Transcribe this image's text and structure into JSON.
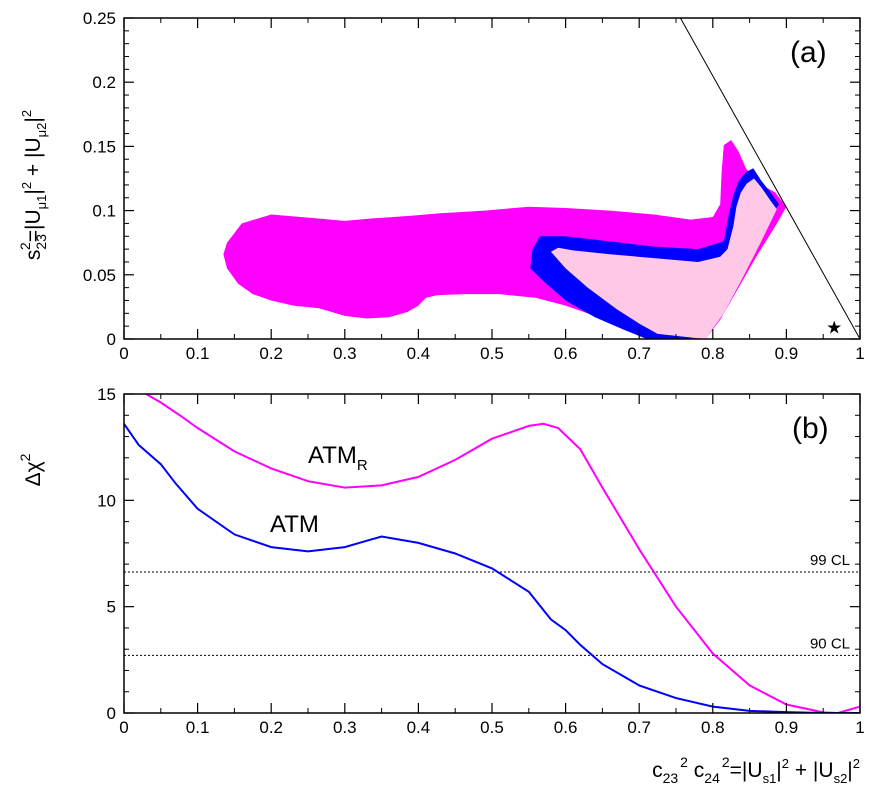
{
  "colors": {
    "axis": "#000000",
    "outer_region": "#ff00ff",
    "middle_region": "#0000ff",
    "inner_region": "#ffc8e6",
    "atm_r_curve": "#ff00ff",
    "atm_curve": "#0000ff",
    "cl_lines": "#000000"
  },
  "chart_data": [
    {
      "type": "area",
      "panel_label": "(a)",
      "ylabel": "s₂₃²=|U_μ1|² + |U_μ2|²",
      "ylabel_parts": {
        "main": "s",
        "sub1": "23",
        "sup1": "2",
        "mid": "=|U",
        "sub2": "μ1",
        "mid2": "|",
        "sup2": "2",
        "plus": " + |U",
        "sub3": "μ2",
        "mid3": "|",
        "sup3": "2"
      },
      "xlim": [
        0,
        1
      ],
      "ylim": [
        0,
        0.25
      ],
      "xticks": [
        "0",
        "0.1",
        "0.2",
        "0.3",
        "0.4",
        "0.5",
        "0.6",
        "0.7",
        "0.8",
        "0.9",
        "1"
      ],
      "yticks": [
        "0",
        "0.05",
        "0.1",
        "0.15",
        "0.2",
        "0.25"
      ],
      "boundary_line": {
        "x": [
          0.756,
          1.0
        ],
        "y": [
          0.25,
          0.0
        ]
      },
      "best_fit_marker": {
        "x": 0.965,
        "y": 0.009,
        "symbol": "★"
      },
      "regions": [
        {
          "name": "",
          "color_key": "outer_region",
          "x": [
            0.14,
            0.135,
            0.14,
            0.155,
            0.175,
            0.2,
            0.23,
            0.265,
            0.3,
            0.33,
            0.36,
            0.385,
            0.4,
            0.41,
            0.425,
            0.46,
            0.51,
            0.56,
            0.6,
            0.64,
            0.68,
            0.72,
            0.76,
            0.79,
            0.81,
            0.835,
            0.86,
            0.885,
            0.9,
            0.885,
            0.86,
            0.845,
            0.835,
            0.825,
            0.815,
            0.812,
            0.81,
            0.8,
            0.77,
            0.72,
            0.66,
            0.6,
            0.55,
            0.49,
            0.43,
            0.39,
            0.34,
            0.3,
            0.26,
            0.2,
            0.16
          ],
          "y": [
            0.075,
            0.066,
            0.055,
            0.043,
            0.035,
            0.03,
            0.026,
            0.024,
            0.018,
            0.016,
            0.017,
            0.021,
            0.026,
            0.032,
            0.034,
            0.035,
            0.035,
            0.032,
            0.026,
            0.018,
            0.01,
            0.003,
            0.0,
            0.0,
            0.015,
            0.04,
            0.065,
            0.088,
            0.103,
            0.114,
            0.122,
            0.133,
            0.146,
            0.155,
            0.151,
            0.13,
            0.105,
            0.095,
            0.093,
            0.097,
            0.1,
            0.102,
            0.103,
            0.1,
            0.098,
            0.096,
            0.094,
            0.092,
            0.094,
            0.097,
            0.09
          ]
        },
        {
          "name": "",
          "color_key": "middle_region",
          "x": [
            0.555,
            0.552,
            0.57,
            0.6,
            0.64,
            0.68,
            0.71,
            0.77,
            0.79,
            0.815,
            0.84,
            0.865,
            0.89,
            0.88,
            0.865,
            0.855,
            0.845,
            0.835,
            0.828,
            0.822,
            0.815,
            0.78,
            0.72,
            0.66,
            0.6,
            0.565
          ],
          "y": [
            0.07,
            0.055,
            0.045,
            0.03,
            0.017,
            0.007,
            0.0,
            0.0,
            0.01,
            0.035,
            0.06,
            0.085,
            0.105,
            0.113,
            0.124,
            0.133,
            0.13,
            0.123,
            0.112,
            0.098,
            0.076,
            0.07,
            0.072,
            0.076,
            0.08,
            0.08
          ]
        },
        {
          "name": "",
          "color_key": "inner_region",
          "x": [
            0.58,
            0.6,
            0.63,
            0.67,
            0.7,
            0.725,
            0.79,
            0.815,
            0.84,
            0.865,
            0.887,
            0.878,
            0.866,
            0.856,
            0.846,
            0.838,
            0.832,
            0.828,
            0.82,
            0.81,
            0.78,
            0.72,
            0.66,
            0.61,
            0.59
          ],
          "y": [
            0.068,
            0.055,
            0.04,
            0.023,
            0.012,
            0.004,
            0.0,
            0.02,
            0.047,
            0.075,
            0.101,
            0.108,
            0.118,
            0.125,
            0.121,
            0.114,
            0.103,
            0.088,
            0.07,
            0.064,
            0.06,
            0.063,
            0.066,
            0.069,
            0.071
          ]
        }
      ]
    },
    {
      "type": "line",
      "panel_label": "(b)",
      "ylabel": "Δχ²",
      "ylabel_parts": {
        "main": "Δχ",
        "sup": "2"
      },
      "xlabel": "c₂₃² c₂₄²=|U_s1|² + |U_s2|²",
      "xlabel_parts": {
        "c1": "c",
        "sub1": "23",
        "sup1": "2",
        "c2": " c",
        "sub2": "24",
        "sup2": "2",
        "mid": "=|U",
        "sub3": "s1",
        "mid2": "|",
        "sup3": "2",
        "plus": " + |U",
        "sub4": "s2",
        "mid3": "|",
        "sup4": "2"
      },
      "xlim": [
        0,
        1
      ],
      "ylim": [
        0,
        15
      ],
      "xticks": [
        "0",
        "0.1",
        "0.2",
        "0.3",
        "0.4",
        "0.5",
        "0.6",
        "0.7",
        "0.8",
        "0.9",
        "1"
      ],
      "yticks": [
        "0",
        "5",
        "10",
        "15"
      ],
      "cl_lines": [
        {
          "label": "99 CL",
          "y": 6.63
        },
        {
          "label": "90 CL",
          "y": 2.71
        }
      ],
      "series": [
        {
          "name": "ATM",
          "label_main": "ATM",
          "label_sub": "R",
          "color_key": "atm_r_curve",
          "x": [
            0.03,
            0.05,
            0.08,
            0.1,
            0.15,
            0.2,
            0.25,
            0.3,
            0.35,
            0.4,
            0.45,
            0.5,
            0.55,
            0.57,
            0.59,
            0.62,
            0.65,
            0.7,
            0.75,
            0.8,
            0.85,
            0.9,
            0.95,
            0.97,
            1.0
          ],
          "y": [
            15.0,
            14.6,
            13.9,
            13.4,
            12.3,
            11.5,
            10.9,
            10.6,
            10.7,
            11.1,
            11.9,
            12.9,
            13.5,
            13.6,
            13.4,
            12.4,
            10.6,
            7.7,
            5.0,
            2.8,
            1.3,
            0.4,
            0.03,
            0.0,
            0.3
          ]
        },
        {
          "name": "ATM",
          "label_main": "ATM",
          "label_sub": "",
          "color_key": "atm_curve",
          "x": [
            0.0,
            0.02,
            0.05,
            0.07,
            0.1,
            0.15,
            0.2,
            0.25,
            0.3,
            0.33,
            0.35,
            0.4,
            0.45,
            0.5,
            0.55,
            0.58,
            0.6,
            0.62,
            0.65,
            0.7,
            0.75,
            0.8,
            0.85,
            0.9,
            0.95,
            1.0
          ],
          "y": [
            13.6,
            12.6,
            11.7,
            10.8,
            9.6,
            8.4,
            7.8,
            7.6,
            7.8,
            8.1,
            8.3,
            8.0,
            7.5,
            6.8,
            5.7,
            4.4,
            3.9,
            3.2,
            2.3,
            1.3,
            0.7,
            0.3,
            0.1,
            0.04,
            0.0,
            0.0
          ]
        }
      ]
    }
  ]
}
